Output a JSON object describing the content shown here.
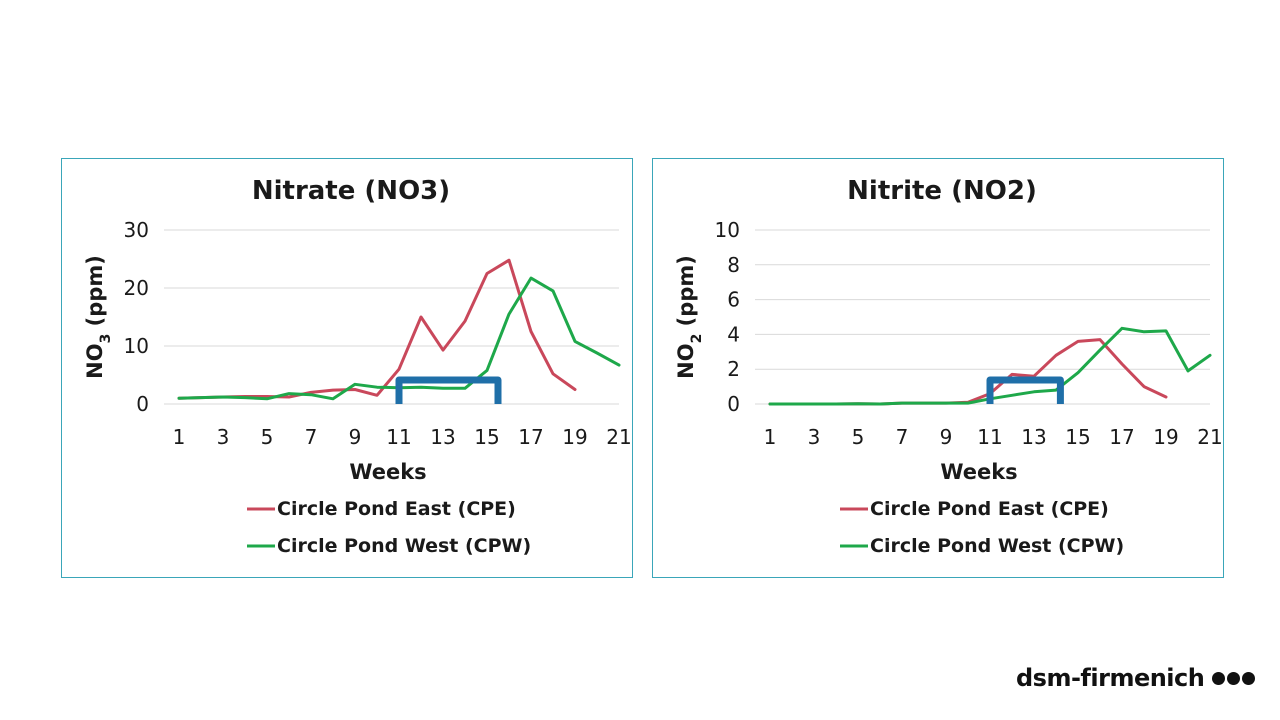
{
  "brand": {
    "name": "dsm-firmenich"
  },
  "colors": {
    "cpe": "#c9485b",
    "cpw": "#1ea84a",
    "highlight": "#1f6fa8",
    "border": "#3aa6b9"
  },
  "chart_data": [
    {
      "type": "line",
      "title": "Nitrate (NO3)",
      "xlabel": "Weeks",
      "ylabel_main": "NO",
      "ylabel_sub": "3",
      "ylabel_tail": " (ppm)",
      "ylim": [
        0,
        30
      ],
      "yticks": [
        0,
        10,
        20,
        30
      ],
      "xticks": [
        1,
        3,
        5,
        7,
        9,
        11,
        13,
        15,
        17,
        19,
        21
      ],
      "grid": true,
      "legend_position": "bottom",
      "highlight_range": [
        11,
        15.5
      ],
      "series": [
        {
          "name": "Circle Pond East (CPE)",
          "color": "cpe",
          "x": [
            1,
            2,
            3,
            4,
            5,
            6,
            7,
            8,
            9,
            10,
            11,
            12,
            13,
            14,
            15,
            16,
            17,
            18,
            19
          ],
          "y": [
            1,
            1.1,
            1.2,
            1.3,
            1.3,
            1.2,
            2,
            2.4,
            2.5,
            1.5,
            6,
            15,
            9.3,
            14.3,
            22.5,
            24.8,
            12.5,
            5.2,
            2.5
          ]
        },
        {
          "name": "Circle Pond West (CPW)",
          "color": "cpw",
          "x": [
            1,
            2,
            3,
            4,
            5,
            6,
            7,
            8,
            9,
            10,
            11,
            12,
            13,
            14,
            15,
            16,
            17,
            18,
            19,
            20,
            21
          ],
          "y": [
            1,
            1.1,
            1.2,
            1.1,
            0.9,
            1.8,
            1.6,
            0.9,
            3.4,
            2.9,
            2.8,
            2.9,
            2.7,
            2.7,
            5.8,
            15.5,
            21.7,
            19.5,
            10.8,
            8.8,
            6.7
          ]
        }
      ]
    },
    {
      "type": "line",
      "title": "Nitrite (NO2)",
      "xlabel": "Weeks",
      "ylabel_main": "NO",
      "ylabel_sub": "2",
      "ylabel_tail": " (ppm)",
      "ylim": [
        0,
        10
      ],
      "yticks": [
        0,
        2,
        4,
        6,
        8,
        10
      ],
      "xticks": [
        1,
        3,
        5,
        7,
        9,
        11,
        13,
        15,
        17,
        19,
        21
      ],
      "grid": true,
      "legend_position": "bottom",
      "highlight_range": [
        11,
        14.2
      ],
      "series": [
        {
          "name": "Circle Pond East (CPE)",
          "color": "cpe",
          "x": [
            1,
            2,
            3,
            4,
            5,
            6,
            7,
            8,
            9,
            10,
            11,
            12,
            13,
            14,
            15,
            16,
            17,
            18,
            19
          ],
          "y": [
            0,
            0,
            0,
            0,
            0.02,
            0,
            0.05,
            0.05,
            0.05,
            0.1,
            0.6,
            1.7,
            1.6,
            2.8,
            3.6,
            3.7,
            2.3,
            1.0,
            0.4
          ]
        },
        {
          "name": "Circle Pond West (CPW)",
          "color": "cpw",
          "x": [
            1,
            2,
            3,
            4,
            5,
            6,
            7,
            8,
            9,
            10,
            11,
            12,
            13,
            14,
            15,
            16,
            17,
            18,
            19,
            20,
            21
          ],
          "y": [
            0,
            0,
            0,
            0,
            0.02,
            0,
            0.05,
            0.05,
            0.05,
            0.05,
            0.3,
            0.5,
            0.7,
            0.8,
            1.8,
            3.1,
            4.35,
            4.15,
            4.2,
            1.9,
            2.8
          ]
        }
      ]
    }
  ]
}
